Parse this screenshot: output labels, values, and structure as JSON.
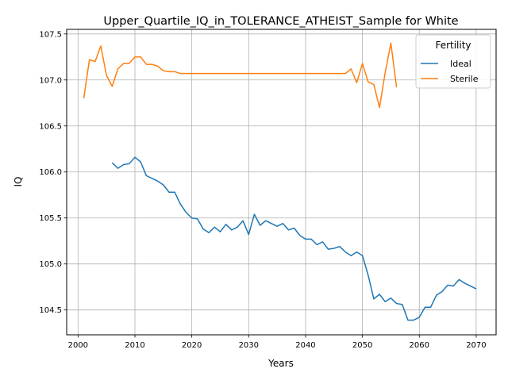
{
  "chart_data": {
    "type": "line",
    "title": "Upper_Quartile_IQ_in_TOLERANCE_ATHEIST_Sample for White",
    "xlabel": "Years",
    "ylabel": "IQ",
    "xlim": [
      1998,
      2073.5
    ],
    "ylim": [
      104.23,
      107.55
    ],
    "grid": true,
    "x_ticks": [
      2000,
      2010,
      2020,
      2030,
      2040,
      2050,
      2060,
      2070
    ],
    "y_ticks": [
      104.5,
      105.0,
      105.5,
      106.0,
      106.5,
      107.0,
      107.5
    ],
    "y_tick_labels": [
      "104.5",
      "105.0",
      "105.5",
      "106.0",
      "106.5",
      "107.0",
      "107.5"
    ],
    "legend": {
      "title": "Fertility",
      "position": "top-right"
    },
    "series": [
      {
        "name": "Ideal",
        "color": "#1f77b4",
        "x": [
          2006,
          2007,
          2008,
          2009,
          2010,
          2011,
          2012,
          2013,
          2014,
          2015,
          2016,
          2017,
          2018,
          2019,
          2020,
          2021,
          2022,
          2023,
          2024,
          2025,
          2026,
          2027,
          2028,
          2029,
          2030,
          2031,
          2032,
          2033,
          2034,
          2035,
          2036,
          2037,
          2038,
          2039,
          2040,
          2041,
          2042,
          2043,
          2044,
          2045,
          2046,
          2047,
          2048,
          2049,
          2050,
          2051,
          2052,
          2053,
          2054,
          2055,
          2056,
          2057,
          2058,
          2059,
          2060,
          2061,
          2062,
          2063,
          2064,
          2065,
          2066,
          2067,
          2068,
          2069,
          2070
        ],
        "y": [
          106.1,
          106.04,
          106.08,
          106.09,
          106.16,
          106.11,
          105.96,
          105.93,
          105.9,
          105.86,
          105.78,
          105.78,
          105.65,
          105.56,
          105.5,
          105.49,
          105.38,
          105.34,
          105.4,
          105.35,
          105.43,
          105.37,
          105.4,
          105.47,
          105.32,
          105.54,
          105.42,
          105.47,
          105.44,
          105.41,
          105.44,
          105.37,
          105.39,
          105.31,
          105.27,
          105.27,
          105.21,
          105.24,
          105.16,
          105.17,
          105.19,
          105.13,
          105.09,
          105.13,
          105.09,
          104.88,
          104.62,
          104.67,
          104.59,
          104.63,
          104.57,
          104.56,
          104.39,
          104.39,
          104.42,
          104.53,
          104.53,
          104.66,
          104.7,
          104.77,
          104.76,
          104.83,
          104.79,
          104.76,
          104.73
        ]
      },
      {
        "name": "Sterile",
        "color": "#ff7f0e",
        "x": [
          2001,
          2002,
          2003,
          2004,
          2005,
          2006,
          2007,
          2008,
          2009,
          2010,
          2011,
          2012,
          2013,
          2014,
          2015,
          2016,
          2017,
          2018,
          2019,
          2020,
          2021,
          2022,
          2023,
          2024,
          2025,
          2026,
          2027,
          2028,
          2029,
          2030,
          2031,
          2032,
          2033,
          2034,
          2035,
          2036,
          2037,
          2038,
          2039,
          2040,
          2041,
          2042,
          2043,
          2044,
          2045,
          2046,
          2047,
          2048,
          2049,
          2050,
          2051,
          2052,
          2053,
          2054,
          2055,
          2056
        ],
        "y": [
          106.8,
          107.22,
          107.2,
          107.37,
          107.05,
          106.93,
          107.12,
          107.18,
          107.18,
          107.25,
          107.25,
          107.17,
          107.17,
          107.15,
          107.1,
          107.09,
          107.09,
          107.07,
          107.07,
          107.07,
          107.07,
          107.07,
          107.07,
          107.07,
          107.07,
          107.07,
          107.07,
          107.07,
          107.07,
          107.07,
          107.07,
          107.07,
          107.07,
          107.07,
          107.07,
          107.07,
          107.07,
          107.07,
          107.07,
          107.07,
          107.07,
          107.07,
          107.07,
          107.07,
          107.07,
          107.07,
          107.07,
          107.12,
          106.97,
          107.18,
          106.98,
          106.95,
          106.7,
          107.08,
          107.4,
          106.92
        ]
      }
    ]
  }
}
